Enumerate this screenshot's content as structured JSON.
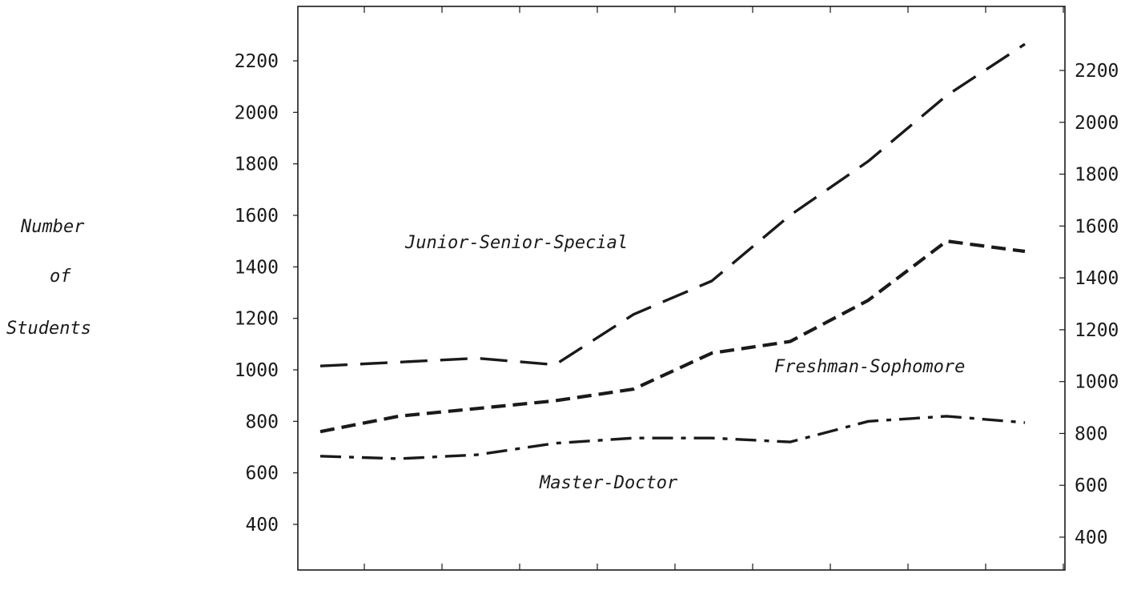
{
  "chart_data": {
    "type": "line",
    "ylabel_lines": [
      "Number",
      "of",
      "Students"
    ],
    "x_count": 10,
    "y_tick_values": [
      400,
      600,
      800,
      1000,
      1200,
      1400,
      1600,
      1800,
      2000,
      2200
    ],
    "y_tick_labels": [
      "400",
      "600",
      "800",
      "1000",
      "1200",
      "1400",
      "1600",
      "1800",
      "2000",
      "2200"
    ],
    "grid": false,
    "series": [
      {
        "name": "Junior-Senior-Special",
        "style": "long-dash",
        "values": [
          1015,
          1030,
          1045,
          1020,
          1215,
          1345,
          1600,
          1810,
          2065,
          2265
        ]
      },
      {
        "name": "Freshman-Sophomore",
        "style": "short-dash",
        "values": [
          760,
          820,
          850,
          880,
          925,
          1065,
          1110,
          1270,
          1500,
          1460
        ]
      },
      {
        "name": "Master-Doctor",
        "style": "dash-dot",
        "values": [
          665,
          655,
          670,
          715,
          735,
          735,
          720,
          800,
          820,
          795
        ]
      }
    ],
    "line_color": "#1a1a1a"
  }
}
